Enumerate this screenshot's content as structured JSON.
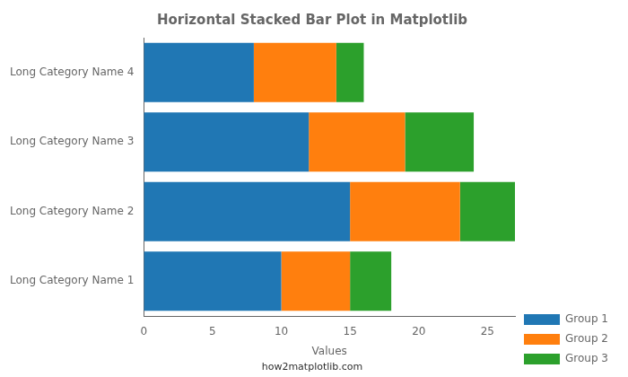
{
  "chart_data": {
    "type": "bar",
    "orientation": "horizontal",
    "stacked": true,
    "title": "Horizontal Stacked Bar Plot in Matplotlib",
    "xlabel": "Values",
    "categories": [
      "Long Category Name 1",
      "Long Category Name 2",
      "Long Category Name 3",
      "Long Category Name 4"
    ],
    "series": [
      {
        "name": "Group 1",
        "color": "#2077b4",
        "values": [
          10,
          15,
          12,
          8
        ]
      },
      {
        "name": "Group 2",
        "color": "#ff7f0e",
        "values": [
          5,
          8,
          7,
          6
        ]
      },
      {
        "name": "Group 3",
        "color": "#2ca02c",
        "values": [
          3,
          4,
          5,
          2
        ]
      }
    ],
    "xlim": [
      0,
      27
    ],
    "xticks": [
      0,
      5,
      10,
      15,
      20,
      25
    ],
    "grid": false,
    "legend": "lower right",
    "annotations": [
      "how2matplotlib.com"
    ]
  }
}
